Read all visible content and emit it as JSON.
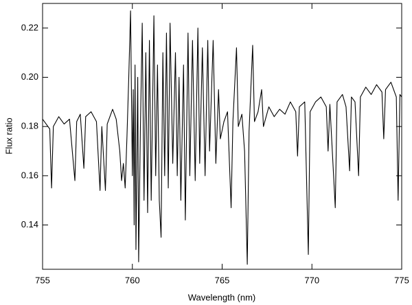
{
  "chart_data": {
    "type": "line",
    "xlabel": "Wavelength (nm)",
    "ylabel": "Flux ratio",
    "xlim": [
      755,
      775
    ],
    "xticks": [
      755,
      760,
      765,
      770,
      775
    ],
    "ylim": [
      0.122,
      0.23
    ],
    "yticks": [
      0.14,
      0.16,
      0.18,
      {
        "value": 0.2,
        "label": "0.20"
      },
      0.22
    ],
    "color": "#000000",
    "x": [
      755.0,
      755.2,
      755.4,
      755.5,
      755.6,
      755.9,
      756.2,
      756.5,
      756.8,
      756.9,
      757.1,
      757.3,
      757.4,
      757.7,
      758.0,
      758.2,
      758.3,
      758.5,
      758.6,
      758.9,
      759.1,
      759.3,
      759.4,
      759.5,
      759.6,
      759.7,
      759.8,
      759.9,
      760.0,
      760.05,
      760.1,
      760.15,
      760.2,
      760.3,
      760.35,
      760.45,
      760.55,
      760.65,
      760.75,
      760.85,
      760.95,
      761.05,
      761.2,
      761.3,
      761.4,
      761.5,
      761.6,
      761.7,
      761.8,
      761.9,
      762.0,
      762.1,
      762.25,
      762.4,
      762.5,
      762.6,
      762.7,
      762.85,
      762.95,
      763.1,
      763.2,
      763.35,
      763.5,
      763.65,
      763.75,
      763.9,
      764.05,
      764.2,
      764.3,
      764.5,
      764.65,
      764.8,
      764.9,
      765.1,
      765.3,
      765.5,
      765.6,
      765.8,
      765.9,
      766.1,
      766.25,
      766.4,
      766.5,
      766.7,
      766.8,
      767.0,
      767.2,
      767.3,
      767.6,
      767.9,
      768.2,
      768.5,
      768.8,
      769.1,
      769.2,
      769.3,
      769.6,
      769.8,
      769.9,
      770.2,
      770.5,
      770.8,
      770.9,
      771.0,
      771.3,
      771.4,
      771.7,
      771.9,
      772.1,
      772.2,
      772.4,
      772.6,
      772.7,
      773.0,
      773.3,
      773.6,
      773.9,
      774.0,
      774.1,
      774.4,
      774.7,
      774.8,
      774.9,
      775.0
    ],
    "values": [
      0.183,
      0.181,
      0.179,
      0.155,
      0.18,
      0.184,
      0.181,
      0.183,
      0.158,
      0.182,
      0.185,
      0.163,
      0.184,
      0.186,
      0.182,
      0.154,
      0.18,
      0.154,
      0.181,
      0.187,
      0.183,
      0.17,
      0.158,
      0.165,
      0.155,
      0.176,
      0.2,
      0.227,
      0.16,
      0.195,
      0.14,
      0.205,
      0.13,
      0.2,
      0.125,
      0.18,
      0.222,
      0.15,
      0.21,
      0.145,
      0.215,
      0.15,
      0.225,
      0.16,
      0.205,
      0.15,
      0.135,
      0.21,
      0.16,
      0.218,
      0.155,
      0.222,
      0.165,
      0.21,
      0.16,
      0.2,
      0.15,
      0.205,
      0.142,
      0.218,
      0.16,
      0.215,
      0.158,
      0.22,
      0.165,
      0.212,
      0.16,
      0.215,
      0.17,
      0.215,
      0.165,
      0.195,
      0.175,
      0.182,
      0.186,
      0.147,
      0.182,
      0.212,
      0.18,
      0.185,
      0.17,
      0.124,
      0.178,
      0.213,
      0.182,
      0.186,
      0.195,
      0.18,
      0.188,
      0.184,
      0.187,
      0.185,
      0.19,
      0.186,
      0.168,
      0.188,
      0.19,
      0.128,
      0.186,
      0.19,
      0.192,
      0.188,
      0.17,
      0.189,
      0.147,
      0.19,
      0.193,
      0.188,
      0.162,
      0.192,
      0.19,
      0.16,
      0.192,
      0.196,
      0.193,
      0.197,
      0.194,
      0.175,
      0.195,
      0.198,
      0.192,
      0.15,
      0.193,
      0.192
    ]
  }
}
